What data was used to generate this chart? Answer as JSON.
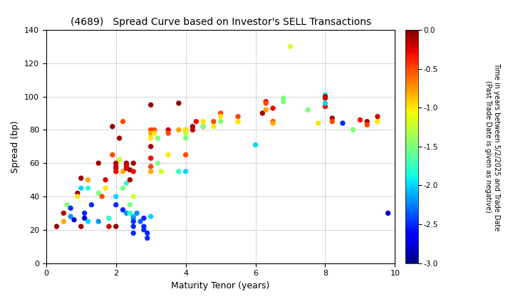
{
  "title": "(4689)   Spread Curve based on Investor's SELL Transactions",
  "xlabel": "Maturity Tenor (years)",
  "ylabel": "Spread (bp)",
  "colorbar_label": "Time in years between 5/2/2025 and Trade Date\n(Past Trade Date is given as negative)",
  "xlim": [
    0,
    10
  ],
  "ylim": [
    0,
    140
  ],
  "xticks": [
    0,
    2,
    4,
    6,
    8,
    10
  ],
  "yticks": [
    0,
    20,
    40,
    60,
    80,
    100,
    120,
    140
  ],
  "cmap_vmin": -3.0,
  "cmap_vmax": 0.0,
  "cmap_ticks": [
    0.0,
    -0.5,
    -1.0,
    -1.5,
    -2.0,
    -2.5,
    -3.0
  ],
  "points": [
    [
      0.3,
      22,
      -0.05
    ],
    [
      0.5,
      30,
      -0.15
    ],
    [
      0.5,
      25,
      -0.8
    ],
    [
      0.6,
      35,
      -1.5
    ],
    [
      0.7,
      28,
      -2.2
    ],
    [
      0.7,
      33,
      -2.5
    ],
    [
      0.8,
      26,
      -2.8
    ],
    [
      0.9,
      42,
      -0.1
    ],
    [
      0.9,
      40,
      -1.0
    ],
    [
      1.0,
      22,
      -0.05
    ],
    [
      1.0,
      51,
      -0.1
    ],
    [
      1.0,
      45,
      -2.0
    ],
    [
      1.1,
      30,
      -2.5
    ],
    [
      1.1,
      27,
      -2.8
    ],
    [
      1.2,
      25,
      -2.0
    ],
    [
      1.2,
      45,
      -1.8
    ],
    [
      1.2,
      50,
      -0.8
    ],
    [
      1.3,
      35,
      -2.5
    ],
    [
      1.5,
      60,
      -0.1
    ],
    [
      1.5,
      42,
      -1.5
    ],
    [
      1.5,
      25,
      -2.2
    ],
    [
      1.6,
      40,
      -0.5
    ],
    [
      1.7,
      50,
      -0.2
    ],
    [
      1.7,
      45,
      -1.0
    ],
    [
      1.8,
      22,
      -0.2
    ],
    [
      1.8,
      27,
      -1.8
    ],
    [
      1.9,
      82,
      -0.05
    ],
    [
      1.9,
      65,
      -0.5
    ],
    [
      2.0,
      57,
      -0.1
    ],
    [
      2.0,
      60,
      -0.15
    ],
    [
      2.0,
      58,
      -0.2
    ],
    [
      2.0,
      55,
      -0.3
    ],
    [
      2.0,
      22,
      -0.05
    ],
    [
      2.0,
      40,
      -2.0
    ],
    [
      2.0,
      35,
      -2.5
    ],
    [
      2.1,
      75,
      -0.1
    ],
    [
      2.1,
      62,
      -1.2
    ],
    [
      2.2,
      85,
      -0.5
    ],
    [
      2.2,
      55,
      -0.8
    ],
    [
      2.2,
      45,
      -1.5
    ],
    [
      2.2,
      32,
      -2.5
    ],
    [
      2.3,
      57,
      -0.05
    ],
    [
      2.3,
      60,
      -0.1
    ],
    [
      2.3,
      59,
      -0.15
    ],
    [
      2.3,
      57,
      -0.2
    ],
    [
      2.3,
      58,
      -0.25
    ],
    [
      2.3,
      48,
      -1.8
    ],
    [
      2.3,
      30,
      -2.2
    ],
    [
      2.4,
      56,
      -0.05
    ],
    [
      2.4,
      50,
      -0.1
    ],
    [
      2.4,
      35,
      -1.5
    ],
    [
      2.4,
      30,
      -1.8
    ],
    [
      2.5,
      60,
      -0.1
    ],
    [
      2.5,
      55,
      -0.3
    ],
    [
      2.5,
      40,
      -1.2
    ],
    [
      2.5,
      28,
      -2.0
    ],
    [
      2.5,
      27,
      -2.2
    ],
    [
      2.5,
      25,
      -2.5
    ],
    [
      2.5,
      22,
      -2.5
    ],
    [
      2.5,
      18,
      -2.5
    ],
    [
      2.6,
      30,
      -2.2
    ],
    [
      2.7,
      25,
      -2.3
    ],
    [
      2.8,
      27,
      -2.5
    ],
    [
      2.8,
      22,
      -2.5
    ],
    [
      2.8,
      20,
      -2.5
    ],
    [
      2.9,
      18,
      -2.5
    ],
    [
      2.9,
      15,
      -2.5
    ],
    [
      3.0,
      95,
      -0.05
    ],
    [
      3.0,
      80,
      -0.5
    ],
    [
      3.0,
      78,
      -0.8
    ],
    [
      3.0,
      75,
      -1.0
    ],
    [
      3.0,
      70,
      -0.1
    ],
    [
      3.0,
      63,
      -0.3
    ],
    [
      3.0,
      58,
      -0.5
    ],
    [
      3.0,
      55,
      -0.8
    ],
    [
      3.0,
      28,
      -2.0
    ],
    [
      3.1,
      80,
      -0.5
    ],
    [
      3.1,
      78,
      -1.0
    ],
    [
      3.2,
      75,
      -1.5
    ],
    [
      3.2,
      60,
      -1.5
    ],
    [
      3.3,
      55,
      -1.2
    ],
    [
      3.5,
      80,
      -0.2
    ],
    [
      3.5,
      78,
      -0.5
    ],
    [
      3.5,
      65,
      -1.0
    ],
    [
      3.8,
      96,
      -0.05
    ],
    [
      3.8,
      80,
      -0.8
    ],
    [
      3.8,
      55,
      -1.8
    ],
    [
      4.0,
      80,
      -0.5
    ],
    [
      4.0,
      80,
      -1.0
    ],
    [
      4.0,
      78,
      -1.2
    ],
    [
      4.0,
      75,
      -1.5
    ],
    [
      4.0,
      65,
      -0.5
    ],
    [
      4.0,
      55,
      -2.0
    ],
    [
      4.2,
      80,
      -0.2
    ],
    [
      4.2,
      82,
      -0.1
    ],
    [
      4.3,
      85,
      -0.3
    ],
    [
      4.5,
      82,
      -0.5
    ],
    [
      4.5,
      85,
      -1.0
    ],
    [
      4.5,
      82,
      -1.5
    ],
    [
      4.8,
      85,
      -0.5
    ],
    [
      4.8,
      82,
      -1.0
    ],
    [
      5.0,
      90,
      -0.5
    ],
    [
      5.0,
      88,
      -1.0
    ],
    [
      5.0,
      85,
      -1.5
    ],
    [
      5.5,
      88,
      -0.5
    ],
    [
      5.5,
      85,
      -1.0
    ],
    [
      6.0,
      71,
      -2.0
    ],
    [
      6.2,
      90,
      -0.1
    ],
    [
      6.3,
      97,
      -0.3
    ],
    [
      6.3,
      96,
      -0.5
    ],
    [
      6.3,
      92,
      -0.8
    ],
    [
      6.5,
      93,
      -0.3
    ],
    [
      6.5,
      85,
      -0.5
    ],
    [
      6.5,
      84,
      -0.8
    ],
    [
      6.8,
      99,
      -1.5
    ],
    [
      6.8,
      97,
      -1.5
    ],
    [
      7.0,
      130,
      -1.2
    ],
    [
      7.5,
      92,
      -1.5
    ],
    [
      7.8,
      84,
      -1.0
    ],
    [
      8.0,
      101,
      -1.8
    ],
    [
      8.0,
      100,
      -0.1
    ],
    [
      8.0,
      99,
      -0.2
    ],
    [
      8.0,
      94,
      -0.3
    ],
    [
      8.0,
      96,
      -2.0
    ],
    [
      8.2,
      87,
      -0.1
    ],
    [
      8.2,
      85,
      -0.5
    ],
    [
      8.5,
      84,
      -2.5
    ],
    [
      8.8,
      80,
      -1.5
    ],
    [
      9.0,
      86,
      -0.3
    ],
    [
      9.2,
      85,
      -0.1
    ],
    [
      9.2,
      83,
      -0.5
    ],
    [
      9.5,
      85,
      -1.0
    ],
    [
      9.5,
      88,
      -0.2
    ],
    [
      9.8,
      30,
      -2.8
    ]
  ]
}
